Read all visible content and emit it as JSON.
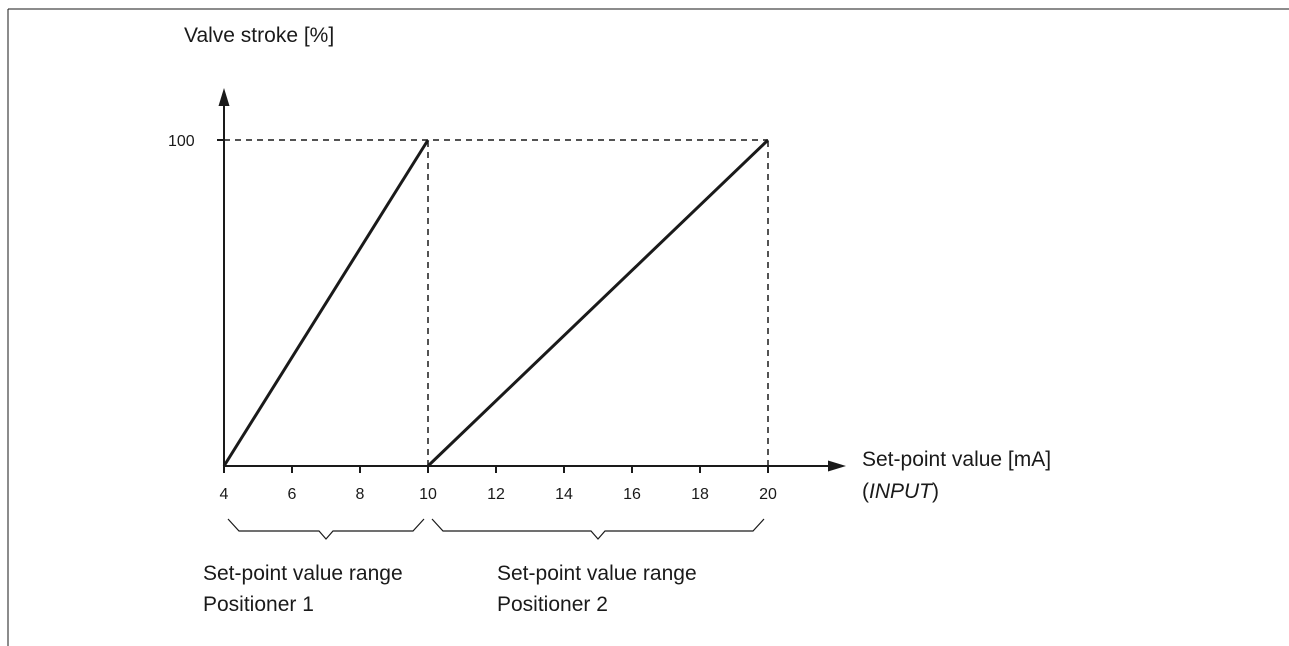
{
  "chart_data": {
    "type": "line",
    "ylabel": "Valve stroke [%]",
    "xlabel_line1": "Set-point value [mA]",
    "xlabel_line2_open": "(",
    "xlabel_line2_italic": "INPUT",
    "xlabel_line2_close": ")",
    "y_tick_labels": [
      "100"
    ],
    "x_ticks": [
      4,
      6,
      8,
      10,
      12,
      14,
      16,
      18,
      20
    ],
    "xlim": [
      4,
      20
    ],
    "ylim": [
      0,
      100
    ],
    "grid": false,
    "series": [
      {
        "x": [
          4,
          10
        ],
        "y": [
          0,
          100
        ]
      },
      {
        "x": [
          10,
          20
        ],
        "y": [
          0,
          100
        ]
      }
    ],
    "reference_lines": [
      {
        "x": [
          4,
          20
        ],
        "y": [
          100,
          100
        ]
      },
      {
        "x": [
          10,
          10
        ],
        "y": [
          0,
          100
        ]
      },
      {
        "x": [
          20,
          20
        ],
        "y": [
          0,
          100
        ]
      }
    ],
    "ranges": [
      {
        "from": 4,
        "to": 10,
        "label_line1": "Set-point value range",
        "label_line2": "Positioner 1"
      },
      {
        "from": 10,
        "to": 20,
        "label_line1": "Set-point value range",
        "label_line2": "Positioner 2"
      }
    ]
  }
}
